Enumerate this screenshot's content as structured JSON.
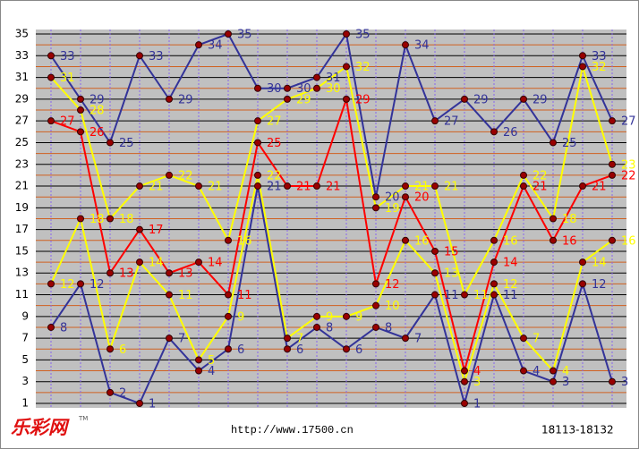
{
  "chart_data": {
    "type": "line",
    "categories": [
      null,
      null,
      null,
      null,
      null,
      null,
      null,
      null,
      null,
      null,
      null,
      null,
      null,
      null,
      null,
      null,
      null,
      null,
      null,
      null
    ],
    "series": [
      {
        "color": "#333399",
        "values": [
          33,
          29,
          25,
          33,
          29,
          34,
          35,
          30,
          30,
          31,
          35,
          20,
          34,
          27,
          29,
          26,
          29,
          25,
          33,
          27
        ]
      },
      {
        "color": "#ffff00",
        "values": [
          31,
          28,
          18,
          21,
          22,
          21,
          16,
          27,
          29,
          30,
          32,
          19,
          21,
          21,
          11,
          16,
          22,
          18,
          32,
          23
        ]
      },
      {
        "color": "#ff0000",
        "values": [
          27,
          26,
          13,
          17,
          13,
          14,
          11,
          25,
          21,
          21,
          29,
          12,
          20,
          15,
          4,
          14,
          21,
          16,
          21,
          22
        ]
      },
      {
        "color": "#ffff00",
        "values": [
          12,
          18,
          6,
          14,
          11,
          5,
          9,
          22,
          7,
          9,
          9,
          10,
          16,
          13,
          3,
          12,
          7,
          4,
          14,
          16
        ]
      },
      {
        "color": "#333399",
        "values": [
          8,
          12,
          2,
          1,
          7,
          4,
          6,
          21,
          6,
          8,
          6,
          8,
          7,
          11,
          1,
          11,
          4,
          3,
          12,
          3
        ]
      }
    ],
    "ylim": [
      1,
      35
    ],
    "yticks": [
      1,
      3,
      5,
      7,
      9,
      11,
      13,
      15,
      17,
      19,
      21,
      23,
      25,
      27,
      29,
      31,
      33,
      35
    ],
    "minor_yticks": [
      2,
      4,
      6,
      8,
      10,
      12,
      14,
      16,
      18,
      20,
      22,
      24,
      26,
      28,
      30,
      32,
      34
    ],
    "grid": true,
    "logo": "乐彩网",
    "logo_mark": "TM",
    "url": "http://www.17500.cn",
    "range": "18113-18132"
  }
}
